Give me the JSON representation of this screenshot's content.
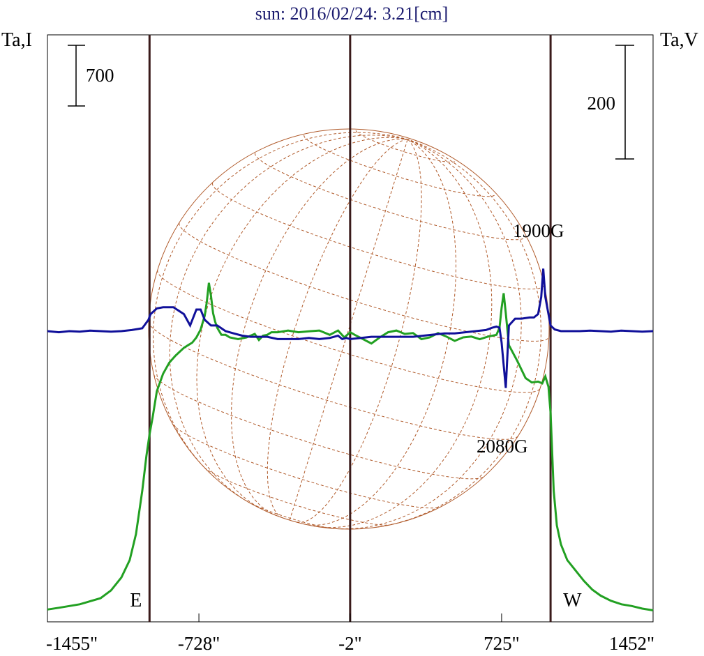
{
  "chart_data": {
    "type": "line",
    "title": "sun: 2016/02/24: 3.21[cm]",
    "left_axis_label": "Ta,I",
    "right_axis_label": "Ta,V",
    "left_scale_bar": "700",
    "right_scale_bar": "200",
    "x_ticks": [
      {
        "value": -1455,
        "label": "-1455\""
      },
      {
        "value": -728,
        "label": "-728\""
      },
      {
        "value": -2,
        "label": "-2\""
      },
      {
        "value": 725,
        "label": "725\""
      },
      {
        "value": 1452,
        "label": "1452\""
      }
    ],
    "xlim": [
      -1455,
      1452
    ],
    "limb_markers": [
      {
        "x": -965,
        "label": "E"
      },
      {
        "x": -2,
        "label": ""
      },
      {
        "x": 960,
        "label": "W"
      }
    ],
    "annotations": [
      {
        "text": "1900G",
        "x": 925,
        "y_series": "V"
      },
      {
        "text": "2080G",
        "x": 740,
        "y_series": "V"
      }
    ],
    "series": [
      {
        "name": "I",
        "color": "#22a022",
        "x": [
          -1455,
          -1400,
          -1300,
          -1200,
          -1150,
          -1100,
          -1060,
          -1030,
          -1000,
          -980,
          -965,
          -950,
          -930,
          -900,
          -870,
          -840,
          -800,
          -780,
          -760,
          -740,
          -720,
          -700,
          -690,
          -680,
          -670,
          -660,
          -650,
          -640,
          -620,
          -600,
          -580,
          -540,
          -500,
          -460,
          -440,
          -420,
          -400,
          -380,
          -350,
          -300,
          -250,
          -200,
          -150,
          -100,
          -60,
          -30,
          -2,
          20,
          60,
          100,
          140,
          180,
          220,
          260,
          300,
          340,
          380,
          420,
          460,
          500,
          540,
          580,
          620,
          660,
          700,
          715,
          725,
          735,
          745,
          760,
          800,
          840,
          870,
          900,
          920,
          935,
          950,
          960,
          975,
          990,
          1010,
          1040,
          1080,
          1120,
          1160,
          1200,
          1250,
          1300,
          1350,
          1400,
          1452
        ],
        "y": [
          30,
          50,
          90,
          160,
          250,
          400,
          600,
          900,
          1400,
          1800,
          2050,
          2250,
          2550,
          2750,
          2880,
          2960,
          3050,
          3080,
          3110,
          3170,
          3260,
          3420,
          3580,
          3800,
          3650,
          3450,
          3350,
          3280,
          3200,
          3200,
          3170,
          3150,
          3170,
          3210,
          3140,
          3190,
          3200,
          3230,
          3230,
          3250,
          3230,
          3240,
          3250,
          3200,
          3250,
          3170,
          3230,
          3200,
          3150,
          3100,
          3170,
          3230,
          3250,
          3210,
          3220,
          3150,
          3170,
          3220,
          3180,
          3130,
          3170,
          3180,
          3150,
          3180,
          3200,
          3280,
          3510,
          3680,
          3450,
          3080,
          2900,
          2700,
          2650,
          2660,
          2640,
          2720,
          2600,
          2300,
          1400,
          1000,
          780,
          600,
          480,
          360,
          260,
          190,
          130,
          90,
          70,
          40,
          20
        ]
      },
      {
        "name": "V",
        "color": "#10109a",
        "x": [
          -1455,
          -1400,
          -1350,
          -1300,
          -1250,
          -1200,
          -1150,
          -1100,
          -1050,
          -1000,
          -970,
          -960,
          -930,
          -900,
          -850,
          -800,
          -770,
          -740,
          -720,
          -700,
          -670,
          -640,
          -600,
          -560,
          -520,
          -480,
          -440,
          -400,
          -350,
          -300,
          -250,
          -200,
          -150,
          -100,
          -60,
          -40,
          -20,
          -2,
          50,
          100,
          150,
          200,
          250,
          300,
          350,
          400,
          450,
          500,
          550,
          600,
          650,
          680,
          700,
          715,
          725,
          735,
          745,
          760,
          790,
          820,
          860,
          880,
          900,
          915,
          925,
          935,
          950,
          960,
          980,
          1010,
          1060,
          1100,
          1150,
          1200,
          1250,
          1300,
          1350,
          1400,
          1452
        ],
        "y": [
          0,
          -2,
          0,
          -1,
          1,
          0,
          -1,
          0,
          2,
          5,
          20,
          30,
          40,
          42,
          42,
          30,
          10,
          38,
          38,
          20,
          10,
          10,
          0,
          -4,
          -8,
          -10,
          -10,
          -10,
          -14,
          -14,
          -14,
          -12,
          -14,
          -12,
          -8,
          -14,
          -12,
          -14,
          -12,
          -10,
          -10,
          -10,
          -10,
          -10,
          -8,
          -6,
          -4,
          -4,
          -2,
          0,
          2,
          6,
          8,
          6,
          -20,
          -60,
          -100,
          10,
          22,
          22,
          24,
          24,
          30,
          60,
          110,
          60,
          30,
          10,
          3,
          0,
          0,
          0,
          1,
          0,
          -1,
          1,
          0,
          -1,
          0
        ]
      }
    ]
  }
}
